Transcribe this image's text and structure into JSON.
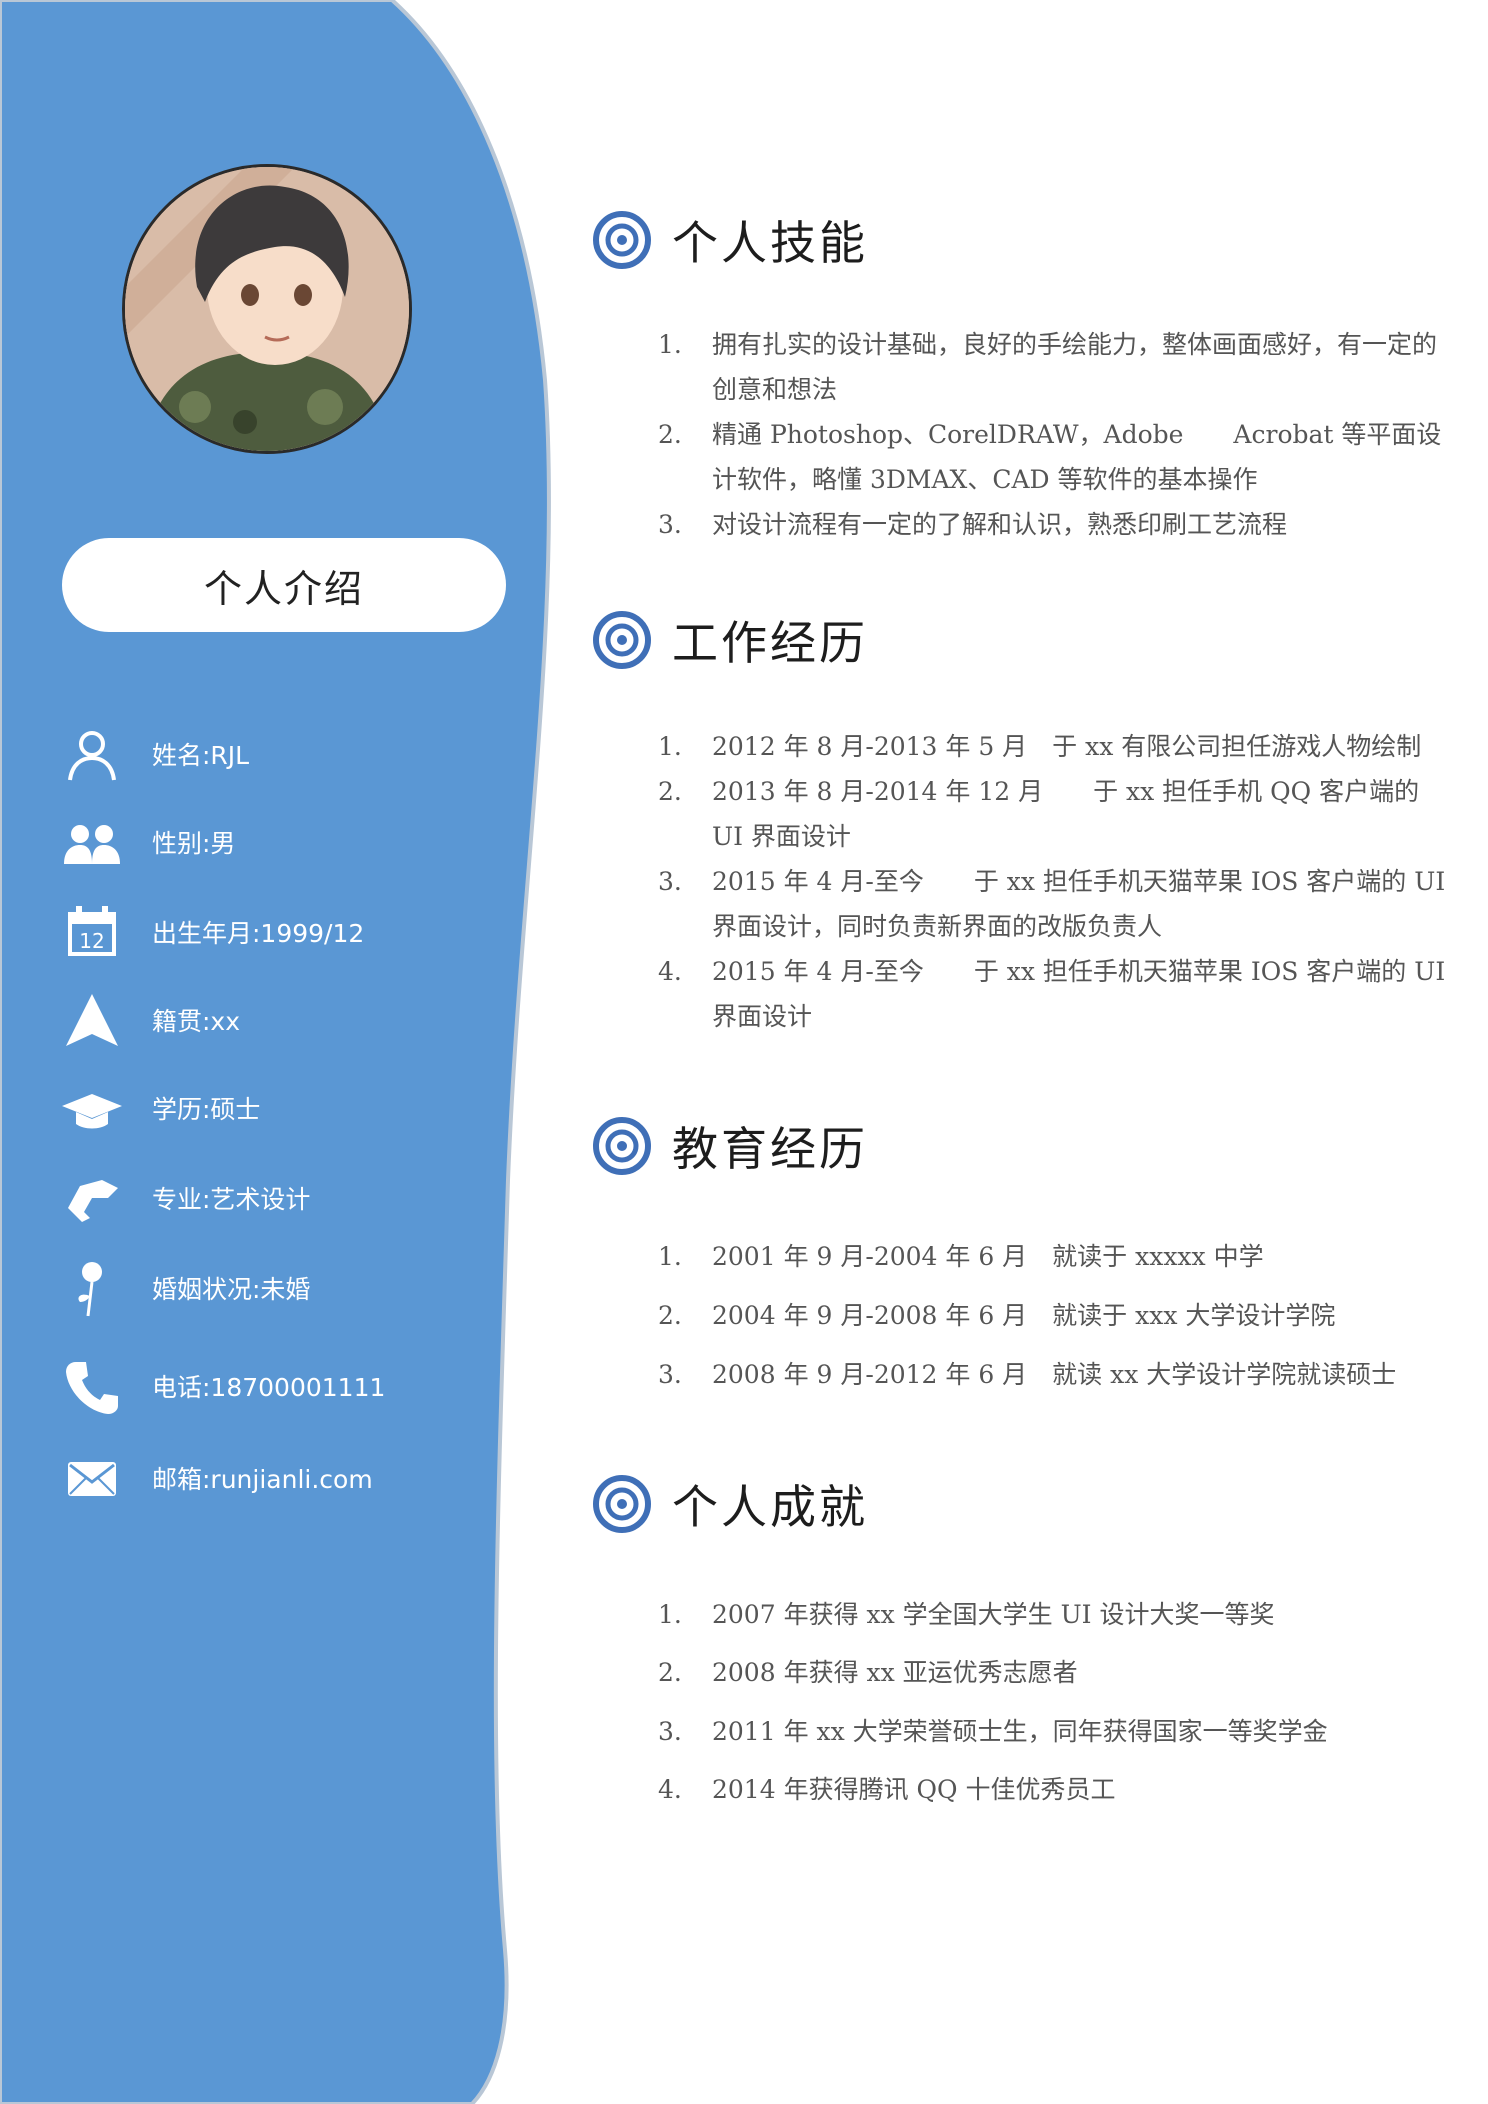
{
  "colors": {
    "sidebar": "#5a97d4",
    "sidebar_edge": "#b9c7d6",
    "accent": "#3f6fb7"
  },
  "sidebar": {
    "intro_title": "个人介绍",
    "info": [
      {
        "icon": "person-icon",
        "text": "姓名:RJL"
      },
      {
        "icon": "couple-icon",
        "text": "性别:男"
      },
      {
        "icon": "calendar-icon",
        "text": "出生年月:1999/12",
        "icon_text": "12"
      },
      {
        "icon": "arrow-up-icon",
        "text": "籍贯:xx"
      },
      {
        "icon": "graduation-cap-icon",
        "text": "学历:硕士"
      },
      {
        "icon": "handshake-icon",
        "text": "专业:艺术设计"
      },
      {
        "icon": "rose-icon",
        "text": "婚姻状况:未婚"
      },
      {
        "icon": "phone-icon",
        "text": "电话:18700001111"
      },
      {
        "icon": "mail-icon",
        "text": "邮箱:runjianli.com"
      }
    ]
  },
  "sections": {
    "skills": {
      "title": "个人技能",
      "items": [
        {
          "num": "1.",
          "text": "拥有扎实的设计基础，良好的手绘能力，整体画面感好，有一定的创意和想法"
        },
        {
          "num": "2.",
          "text": "精通 Photoshop、CorelDRAW，Adobe　　Acrobat 等平面设计软件，略懂 3DMAX、CAD 等软件的基本操作"
        },
        {
          "num": "3.",
          "text": "对设计流程有一定的了解和认识，熟悉印刷工艺流程"
        }
      ]
    },
    "work": {
      "title": "工作经历",
      "items": [
        {
          "num": "1.",
          "text": "2012 年 8 月-2013 年 5 月　于 xx 有限公司担任游戏人物绘制"
        },
        {
          "num": "2.",
          "text": "2013 年 8 月-2014 年 12 月　　于 xx 担任手机 QQ 客户端的 UI 界面设计"
        },
        {
          "num": "3.",
          "text": "2015 年 4 月-至今　　于 xx 担任手机天猫苹果 IOS 客户端的 UI 界面设计，同时负责新界面的改版负责人"
        },
        {
          "num": "4.",
          "text": "2015 年 4 月-至今　　于 xx 担任手机天猫苹果 IOS 客户端的 UI 界面设计"
        }
      ]
    },
    "education": {
      "title": "教育经历",
      "items": [
        {
          "num": "1.",
          "text": "2001 年 9 月-2004 年 6 月　就读于 xxxxx 中学"
        },
        {
          "num": "2.",
          "text": "2004 年 9 月-2008 年 6 月　就读于 xxx 大学设计学院"
        },
        {
          "num": "3.",
          "text": "2008 年 9 月-2012 年 6 月　就读 xx 大学设计学院就读硕士"
        }
      ]
    },
    "achievements": {
      "title": "个人成就",
      "items": [
        {
          "num": "1.",
          "text": "2007 年获得 xx 学全国大学生 UI 设计大奖一等奖"
        },
        {
          "num": "2.",
          "text": "2008 年获得 xx 亚运优秀志愿者"
        },
        {
          "num": "3.",
          "text": "2011 年 xx 大学荣誉硕士生，同年获得国家一等奖学金"
        },
        {
          "num": "4.",
          "text": "2014 年获得腾讯 QQ 十佳优秀员工"
        }
      ]
    }
  }
}
